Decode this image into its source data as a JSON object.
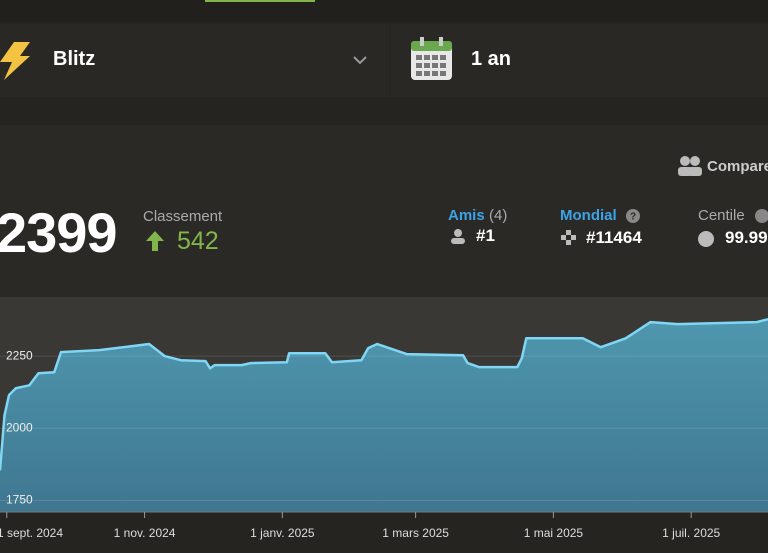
{
  "header": {
    "variant": "Blitz",
    "period": "1 an",
    "compare": "Comparer"
  },
  "stats": {
    "rating": "2399",
    "rating_label": "Classement",
    "change": "542",
    "friends_label": "Amis",
    "friends_count": "(4)",
    "friends_rank": "#1",
    "world_label": "Mondial",
    "world_rank": "#11464",
    "percentile_label": "Centile",
    "percentile": "99.99"
  },
  "chart_data": {
    "type": "area",
    "color": "#7fd6f5",
    "fill": "#4a8fa6",
    "grid": true,
    "x": [
      "2024-08-29",
      "2024-08-31",
      "2024-09-02",
      "2024-09-05",
      "2024-09-11",
      "2024-09-15",
      "2024-09-22",
      "2024-09-25",
      "2024-10-12",
      "2024-11-03",
      "2024-11-10",
      "2024-11-17",
      "2024-11-28",
      "2024-11-30",
      "2024-12-02",
      "2024-12-14",
      "2024-12-18",
      "2025-01-03",
      "2025-01-04",
      "2025-01-20",
      "2025-01-23",
      "2025-02-05",
      "2025-02-08",
      "2025-02-12",
      "2025-02-25",
      "2025-03-22",
      "2025-03-24",
      "2025-03-29",
      "2025-04-15",
      "2025-04-17",
      "2025-04-19",
      "2025-05-14",
      "2025-05-22",
      "2025-06-02",
      "2025-06-13",
      "2025-06-25",
      "2025-07-30",
      "2025-08-04"
    ],
    "values": [
      1854,
      2045,
      2115,
      2139,
      2149,
      2191,
      2194,
      2264,
      2271,
      2292,
      2250,
      2236,
      2233,
      2208,
      2219,
      2219,
      2226,
      2229,
      2260,
      2260,
      2229,
      2236,
      2278,
      2292,
      2257,
      2253,
      2226,
      2212,
      2212,
      2243,
      2312,
      2312,
      2281,
      2312,
      2368,
      2361,
      2368,
      2378
    ],
    "xlim": [
      "2024-08-29",
      "2025-08-04"
    ],
    "xticks": [
      {
        "value": "2024-09-01",
        "label": "1 sept. 2024"
      },
      {
        "value": "2024-11-01",
        "label": "1 nov. 2024"
      },
      {
        "value": "2025-01-01",
        "label": "1 janv. 2025"
      },
      {
        "value": "2025-03-01",
        "label": "1 mars 2025"
      },
      {
        "value": "2025-05-01",
        "label": "1 mai 2025"
      },
      {
        "value": "2025-07-01",
        "label": "1 juil. 2025"
      }
    ],
    "ylim": [
      1710,
      2455
    ],
    "yticks": [
      1750,
      2000,
      2250
    ]
  }
}
